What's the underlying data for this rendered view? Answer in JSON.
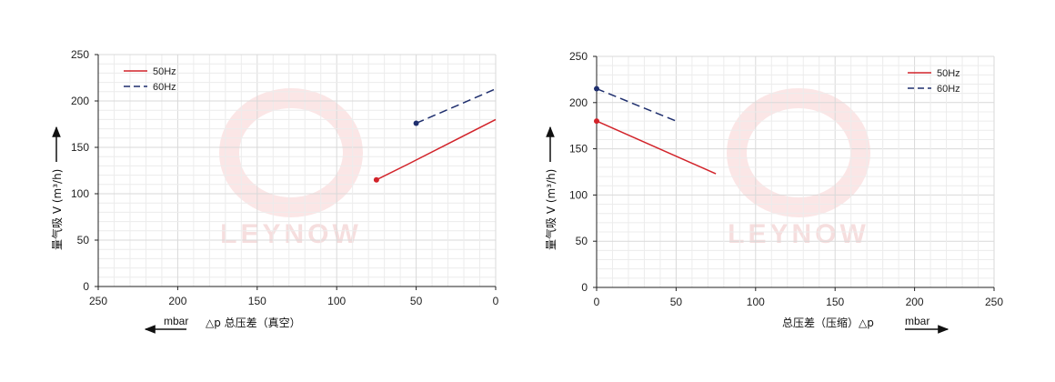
{
  "watermark": "LEYNOW",
  "chart_data": [
    {
      "type": "line",
      "ylabel": "量气吸 V (m³/h)",
      "xlabel": "△p 总压差（真空）",
      "xunit": "mbar",
      "xlim": [
        250,
        0
      ],
      "ylim": [
        0,
        250
      ],
      "xticks": [
        250,
        200,
        150,
        100,
        50,
        0
      ],
      "yticks": [
        0,
        50,
        100,
        150,
        200,
        250
      ],
      "legend_position": "top-left",
      "grid": true,
      "series": [
        {
          "name": "50Hz",
          "color": "#d2232a",
          "dash": "solid",
          "x": [
            75,
            55,
            0
          ],
          "y": [
            115,
            132,
            180
          ]
        },
        {
          "name": "60Hz",
          "color": "#1f2f6e",
          "dash": "dashed",
          "x": [
            50,
            0
          ],
          "y": [
            176,
            213
          ]
        }
      ]
    },
    {
      "type": "line",
      "ylabel": "量气吸 V (m³/h)",
      "xlabel": "总压差（压缩）△p",
      "xunit": "mbar",
      "xlim": [
        0,
        250
      ],
      "ylim": [
        0,
        250
      ],
      "xticks": [
        0,
        50,
        100,
        150,
        200,
        250
      ],
      "yticks": [
        0,
        50,
        100,
        150,
        200,
        250
      ],
      "legend_position": "top-right",
      "grid": true,
      "series": [
        {
          "name": "50Hz",
          "color": "#d2232a",
          "dash": "solid",
          "x": [
            0,
            75
          ],
          "y": [
            180,
            123
          ]
        },
        {
          "name": "60Hz",
          "color": "#1f2f6e",
          "dash": "dashed",
          "x": [
            0,
            50
          ],
          "y": [
            215,
            180
          ]
        }
      ]
    }
  ]
}
